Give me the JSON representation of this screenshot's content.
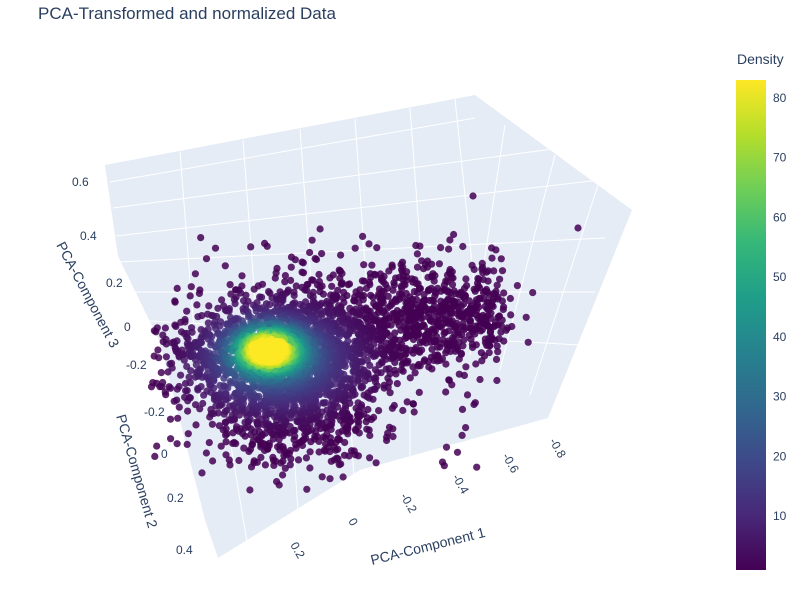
{
  "chart_data": {
    "type": "scatter3d",
    "title": "PCA-Transformed and normalized Data",
    "axes": {
      "x": {
        "label": "PCA-Component 1",
        "ticks": [
          "-0.8",
          "-0.6",
          "-0.4",
          "-0.2",
          "0",
          "0.2"
        ]
      },
      "y": {
        "label": "PCA-Component 2",
        "ticks": [
          "-0.2",
          "0",
          "0.2",
          "0.4"
        ]
      },
      "z": {
        "label": "PCA-Component 3",
        "ticks": [
          "-0.2",
          "0",
          "0.2",
          "0.4",
          "0.6"
        ]
      }
    },
    "colorbar": {
      "title": "Density",
      "range": [
        1,
        83
      ],
      "ticks": [
        "80",
        "70",
        "60",
        "50",
        "40",
        "30",
        "20",
        "10"
      ],
      "tick_values": [
        80,
        70,
        60,
        50,
        40,
        30,
        20,
        10
      ],
      "colorscale": [
        "#440154",
        "#482878",
        "#3e4989",
        "#31688e",
        "#26828e",
        "#1f9e89",
        "#35b779",
        "#6ece58",
        "#b5de2b",
        "#fde725"
      ]
    },
    "cluster": {
      "center": {
        "pc1": 0.05,
        "pc2": 0.02,
        "pc3": -0.05
      },
      "peak_density": 83,
      "point_count": "approx. 3000",
      "outliers": [
        {
          "pc1": -0.3,
          "pc2": -0.2,
          "pc3": 0.6
        },
        {
          "pc1": -0.8,
          "pc2": -0.1,
          "pc3": 0.55
        }
      ]
    }
  }
}
